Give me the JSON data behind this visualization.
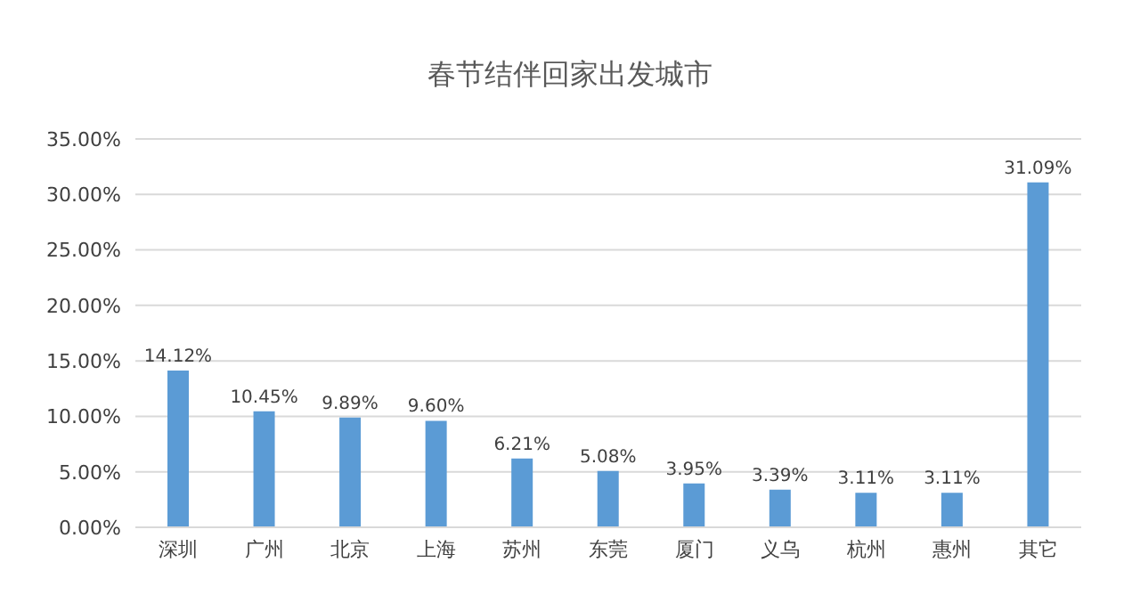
{
  "chart_data": {
    "type": "bar",
    "title": "春节结伴回家出发城市",
    "categories": [
      "深圳",
      "广州",
      "北京",
      "上海",
      "苏州",
      "东莞",
      "厦门",
      "义乌",
      "杭州",
      "惠州",
      "其它"
    ],
    "values": [
      14.12,
      10.45,
      9.89,
      9.6,
      6.21,
      5.08,
      3.95,
      3.39,
      3.11,
      3.11,
      31.09
    ],
    "value_labels": [
      "14.12%",
      "10.45%",
      "9.89%",
      "9.60%",
      "6.21%",
      "5.08%",
      "3.95%",
      "3.39%",
      "3.11%",
      "3.11%",
      "31.09%"
    ],
    "color": "#5b9bd5",
    "ylim": [
      0,
      35
    ],
    "yticks": [
      {
        "value": 0,
        "label": "0.00%"
      },
      {
        "value": 5,
        "label": "5.00%"
      },
      {
        "value": 10,
        "label": "10.00%"
      },
      {
        "value": 15,
        "label": "15.00%"
      },
      {
        "value": 20,
        "label": "20.00%"
      },
      {
        "value": 25,
        "label": "25.00%"
      },
      {
        "value": 30,
        "label": "30.00%"
      },
      {
        "value": 35,
        "label": "35.00%"
      }
    ],
    "grid": "y"
  }
}
